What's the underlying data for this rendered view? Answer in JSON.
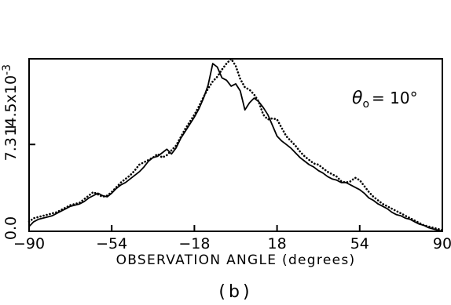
{
  "chart_data": {
    "type": "line",
    "title": "",
    "xlabel": "OBSERVATION ANGLE (degrees)",
    "ylabel": "I",
    "y_scale_label": "x10",
    "y_scale_exponent": "-3",
    "xlim": [
      -90,
      90
    ],
    "ylim": [
      0,
      14.5
    ],
    "x_ticks": [
      -90,
      -54,
      -18,
      18,
      54,
      90
    ],
    "x_tick_labels": [
      "−90",
      "−54",
      "−18",
      "18",
      "54",
      "90"
    ],
    "y_ticks": [
      0,
      7.3,
      14.5
    ],
    "y_tick_labels": [
      "0.0",
      "7.3",
      "14.5"
    ],
    "panel_label": "(b)",
    "annotation": {
      "symbol": "θ",
      "subscript": "o",
      "text": "= 10°"
    },
    "grid": false,
    "series": [
      {
        "style": "solid",
        "x": [
          -90,
          -88,
          -86,
          -84,
          -82,
          -80,
          -78,
          -76,
          -74,
          -72,
          -70,
          -68,
          -66,
          -64,
          -62,
          -60,
          -58,
          -56,
          -54,
          -52,
          -50,
          -48,
          -46,
          -44,
          -42,
          -40,
          -38,
          -36,
          -34,
          -32,
          -30,
          -28,
          -26,
          -24,
          -22,
          -20,
          -18,
          -16,
          -14,
          -12,
          -10,
          -8,
          -6,
          -4,
          -2,
          0,
          2,
          4,
          6,
          8,
          10,
          12,
          14,
          16,
          18,
          20,
          22,
          24,
          26,
          28,
          30,
          32,
          34,
          36,
          38,
          40,
          42,
          44,
          46,
          48,
          50,
          52,
          54,
          56,
          58,
          60,
          62,
          64,
          66,
          68,
          70,
          72,
          74,
          76,
          78,
          80,
          82,
          84,
          86,
          88,
          90
        ],
        "values": [
          0.4,
          0.8,
          1.0,
          1.1,
          1.2,
          1.3,
          1.5,
          1.7,
          1.9,
          2.1,
          2.2,
          2.3,
          2.5,
          2.8,
          3.0,
          3.2,
          3.0,
          2.9,
          3.2,
          3.6,
          3.9,
          4.1,
          4.4,
          4.7,
          5.0,
          5.4,
          5.9,
          6.2,
          6.3,
          6.6,
          6.9,
          6.5,
          7.0,
          7.8,
          8.4,
          9.0,
          9.6,
          10.3,
          11.2,
          12.3,
          14.1,
          13.8,
          12.9,
          12.7,
          12.2,
          12.4,
          11.8,
          10.2,
          10.8,
          11.2,
          10.9,
          10.4,
          9.8,
          8.9,
          8.0,
          7.6,
          7.3,
          7.0,
          6.6,
          6.2,
          5.9,
          5.6,
          5.4,
          5.1,
          4.9,
          4.6,
          4.4,
          4.3,
          4.1,
          4.1,
          3.9,
          3.7,
          3.5,
          3.2,
          2.8,
          2.6,
          2.3,
          2.1,
          1.9,
          1.6,
          1.4,
          1.3,
          1.1,
          1.0,
          0.8,
          0.6,
          0.5,
          0.3,
          0.2,
          0.1,
          0.0
        ]
      },
      {
        "style": "dotted",
        "x": [
          -90,
          -88,
          -86,
          -84,
          -82,
          -80,
          -78,
          -76,
          -74,
          -72,
          -70,
          -68,
          -66,
          -64,
          -62,
          -60,
          -58,
          -56,
          -54,
          -52,
          -50,
          -48,
          -46,
          -44,
          -42,
          -40,
          -38,
          -36,
          -34,
          -32,
          -30,
          -28,
          -26,
          -24,
          -22,
          -20,
          -18,
          -16,
          -14,
          -12,
          -10,
          -8,
          -6,
          -4,
          -2,
          0,
          2,
          4,
          6,
          8,
          10,
          12,
          14,
          16,
          18,
          20,
          22,
          24,
          26,
          28,
          30,
          32,
          34,
          36,
          38,
          40,
          42,
          44,
          46,
          48,
          50,
          52,
          54,
          56,
          58,
          60,
          62,
          64,
          66,
          68,
          70,
          72,
          74,
          76,
          78,
          80,
          82,
          84,
          86,
          88,
          90
        ],
        "values": [
          0.8,
          1.1,
          1.2,
          1.3,
          1.4,
          1.5,
          1.6,
          1.8,
          2.0,
          2.2,
          2.3,
          2.4,
          2.7,
          3.0,
          3.3,
          3.1,
          2.9,
          3.0,
          3.3,
          3.7,
          4.1,
          4.4,
          4.7,
          5.1,
          5.6,
          5.8,
          6.0,
          6.2,
          6.5,
          6.2,
          6.4,
          6.8,
          7.2,
          7.9,
          8.6,
          9.2,
          9.8,
          10.5,
          11.3,
          12.0,
          12.6,
          13.0,
          13.6,
          14.1,
          14.5,
          13.9,
          12.8,
          12.1,
          11.9,
          11.5,
          10.9,
          9.8,
          9.4,
          9.5,
          9.4,
          8.7,
          8.0,
          7.6,
          7.2,
          6.7,
          6.3,
          6.0,
          5.7,
          5.6,
          5.3,
          5.0,
          4.8,
          4.6,
          4.2,
          4.1,
          4.2,
          4.5,
          4.3,
          3.8,
          3.3,
          2.9,
          2.6,
          2.3,
          2.1,
          1.9,
          1.7,
          1.5,
          1.3,
          1.1,
          0.9,
          0.7,
          0.5,
          0.4,
          0.3,
          0.2,
          0.1
        ]
      }
    ]
  }
}
